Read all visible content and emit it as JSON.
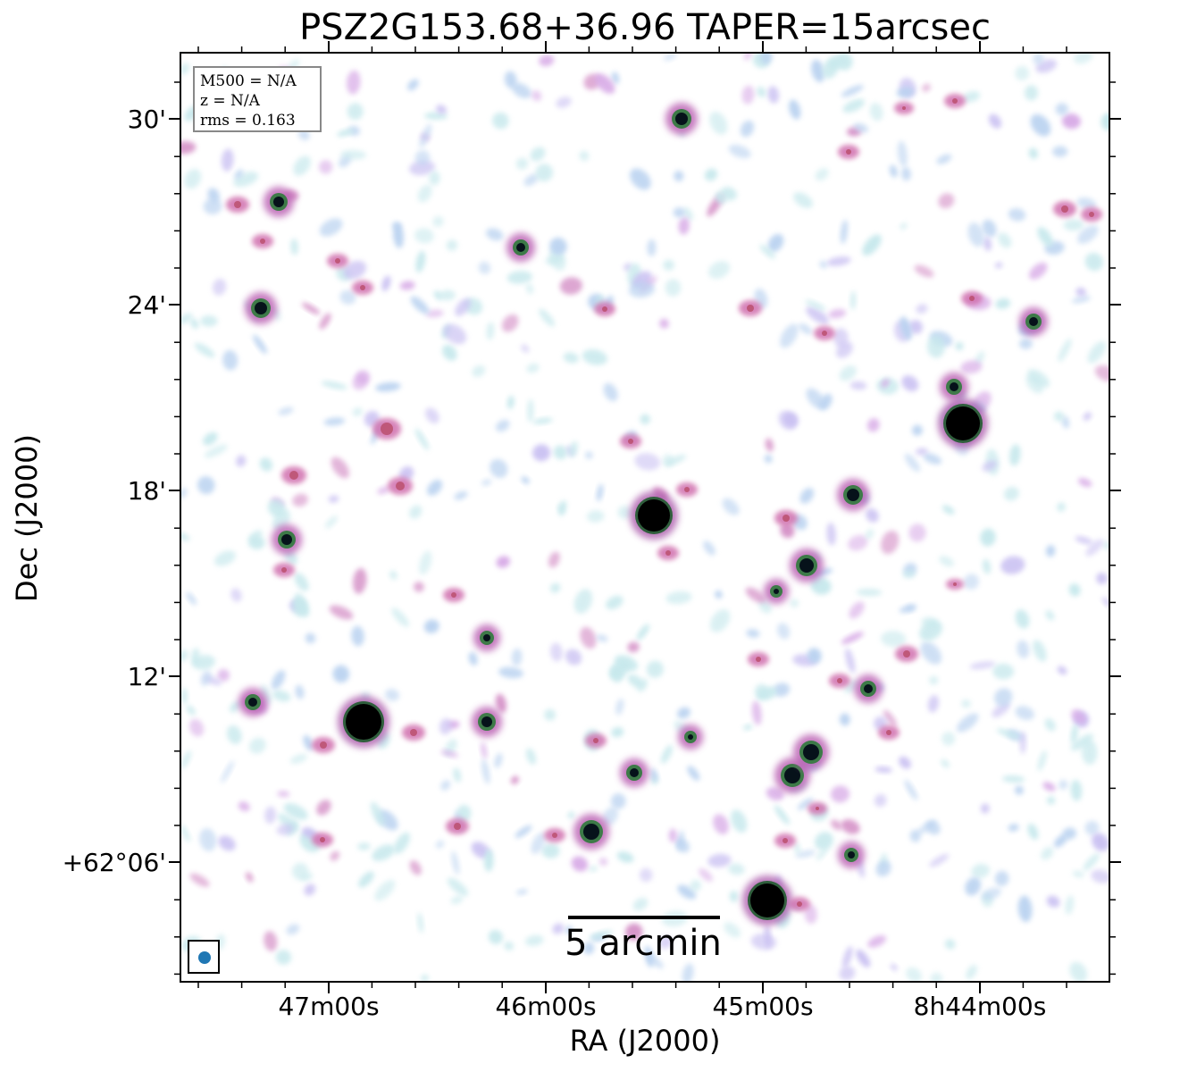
{
  "title": "PSZ2G153.68+36.96 TAPER=15arcsec",
  "axes": {
    "xlabel": "RA (J2000)",
    "ylabel": "Dec (J2000)",
    "xticks": [
      "47m00s",
      "46m00s",
      "45m00s",
      "8h44m00s"
    ],
    "yticks": [
      "30'",
      "24'",
      "18'",
      "12'",
      "+62°06'"
    ]
  },
  "info": {
    "mass": "M500 = N/A",
    "redshift": "z = N/A",
    "rms": "rms = 0.163"
  },
  "scalebar": {
    "label": "5 arcmin"
  },
  "colors": {
    "beam": "#1f77b4"
  }
}
